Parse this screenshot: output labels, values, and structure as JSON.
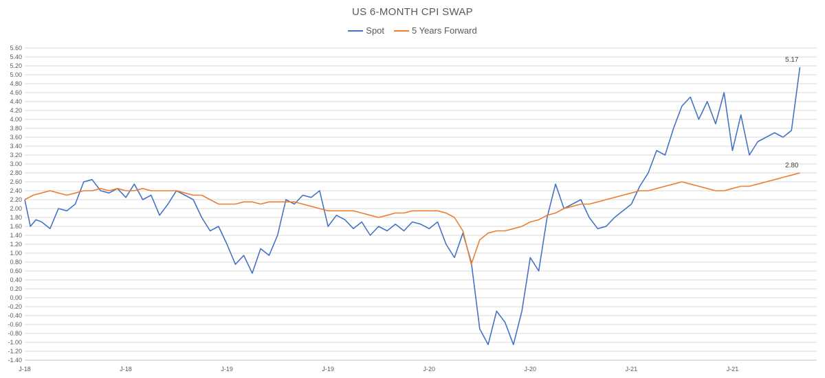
{
  "chart_data": {
    "type": "line",
    "title": "US 6-MONTH CPI SWAP",
    "xlabel": "",
    "ylabel": "",
    "ylim": [
      -1.4,
      5.6
    ],
    "y_ticks": [
      "5.60",
      "5.40",
      "5.20",
      "5.00",
      "4.80",
      "4.60",
      "4.40",
      "4.20",
      "4.00",
      "3.80",
      "3.60",
      "3.40",
      "3.20",
      "3.00",
      "2.80",
      "2.60",
      "2.40",
      "2.20",
      "2.00",
      "1.80",
      "1.60",
      "1.40",
      "1.20",
      "1.00",
      "0.80",
      "0.60",
      "0.40",
      "0.20",
      "0.00",
      "-0.20",
      "-0.40",
      "-0.60",
      "-0.80",
      "-1.00",
      "-1.20",
      "-1.40"
    ],
    "x_tick_labels": [
      "J-18",
      "J-18",
      "J-19",
      "J-19",
      "J-20",
      "J-20",
      "J-21",
      "J-21"
    ],
    "x_tick_dates": [
      "2018-01",
      "2018-07",
      "2019-01",
      "2019-07",
      "2020-01",
      "2020-07",
      "2021-01",
      "2021-07"
    ],
    "x_range": [
      "2018-01",
      "2021-12"
    ],
    "grid": true,
    "legend_position": "top-center",
    "series": [
      {
        "name": "Spot",
        "color": "#4472C4",
        "end_label": "5.17",
        "points": [
          [
            "2018-01",
            2.2
          ],
          [
            "2018-01",
            1.6
          ],
          [
            "2018-01",
            1.75
          ],
          [
            "2018-02",
            1.7
          ],
          [
            "2018-02",
            1.55
          ],
          [
            "2018-03",
            2.0
          ],
          [
            "2018-03",
            1.95
          ],
          [
            "2018-04",
            2.1
          ],
          [
            "2018-04",
            2.6
          ],
          [
            "2018-05",
            2.65
          ],
          [
            "2018-05",
            2.4
          ],
          [
            "2018-06",
            2.35
          ],
          [
            "2018-06",
            2.45
          ],
          [
            "2018-07",
            2.25
          ],
          [
            "2018-07",
            2.55
          ],
          [
            "2018-08",
            2.2
          ],
          [
            "2018-08",
            2.3
          ],
          [
            "2018-09",
            1.85
          ],
          [
            "2018-09",
            2.1
          ],
          [
            "2018-10",
            2.4
          ],
          [
            "2018-10",
            2.3
          ],
          [
            "2018-11",
            2.2
          ],
          [
            "2018-11",
            1.8
          ],
          [
            "2018-12",
            1.5
          ],
          [
            "2018-12",
            1.6
          ],
          [
            "2019-01",
            1.2
          ],
          [
            "2019-01",
            0.75
          ],
          [
            "2019-02",
            0.95
          ],
          [
            "2019-02",
            0.55
          ],
          [
            "2019-03",
            1.1
          ],
          [
            "2019-03",
            0.95
          ],
          [
            "2019-04",
            1.4
          ],
          [
            "2019-04",
            2.2
          ],
          [
            "2019-05",
            2.1
          ],
          [
            "2019-05",
            2.3
          ],
          [
            "2019-06",
            2.25
          ],
          [
            "2019-06",
            2.4
          ],
          [
            "2019-07",
            1.6
          ],
          [
            "2019-07",
            1.85
          ],
          [
            "2019-08",
            1.75
          ],
          [
            "2019-08",
            1.55
          ],
          [
            "2019-09",
            1.7
          ],
          [
            "2019-09",
            1.4
          ],
          [
            "2019-10",
            1.6
          ],
          [
            "2019-10",
            1.5
          ],
          [
            "2019-11",
            1.65
          ],
          [
            "2019-11",
            1.5
          ],
          [
            "2019-12",
            1.7
          ],
          [
            "2019-12",
            1.65
          ],
          [
            "2020-01",
            1.55
          ],
          [
            "2020-01",
            1.7
          ],
          [
            "2020-02",
            1.2
          ],
          [
            "2020-02",
            0.9
          ],
          [
            "2020-03",
            1.45
          ],
          [
            "2020-03",
            0.8
          ],
          [
            "2020-04",
            -0.7
          ],
          [
            "2020-04",
            -1.05
          ],
          [
            "2020-05",
            -0.3
          ],
          [
            "2020-05",
            -0.55
          ],
          [
            "2020-06",
            -1.05
          ],
          [
            "2020-06",
            -0.3
          ],
          [
            "2020-07",
            0.9
          ],
          [
            "2020-07",
            0.6
          ],
          [
            "2020-08",
            1.8
          ],
          [
            "2020-08",
            2.55
          ],
          [
            "2020-09",
            2.0
          ],
          [
            "2020-09",
            2.1
          ],
          [
            "2020-10",
            2.2
          ],
          [
            "2020-10",
            1.8
          ],
          [
            "2020-11",
            1.55
          ],
          [
            "2020-11",
            1.6
          ],
          [
            "2020-12",
            1.8
          ],
          [
            "2020-12",
            1.95
          ],
          [
            "2021-01",
            2.1
          ],
          [
            "2021-01",
            2.5
          ],
          [
            "2021-02",
            2.8
          ],
          [
            "2021-02",
            3.3
          ],
          [
            "2021-03",
            3.2
          ],
          [
            "2021-03",
            3.8
          ],
          [
            "2021-04",
            4.3
          ],
          [
            "2021-04",
            4.5
          ],
          [
            "2021-05",
            4.0
          ],
          [
            "2021-05",
            4.4
          ],
          [
            "2021-06",
            3.9
          ],
          [
            "2021-06",
            4.6
          ],
          [
            "2021-07",
            3.3
          ],
          [
            "2021-07",
            4.1
          ],
          [
            "2021-08",
            3.2
          ],
          [
            "2021-08",
            3.5
          ],
          [
            "2021-09",
            3.6
          ],
          [
            "2021-09",
            3.7
          ],
          [
            "2021-10",
            3.6
          ],
          [
            "2021-10",
            3.75
          ],
          [
            "2021-11",
            5.17
          ]
        ]
      },
      {
        "name": "5 Years Forward",
        "color": "#ED7D31",
        "end_label": "2.80",
        "points": [
          [
            "2018-01",
            2.2
          ],
          [
            "2018-01",
            2.3
          ],
          [
            "2018-02",
            2.35
          ],
          [
            "2018-02",
            2.4
          ],
          [
            "2018-03",
            2.35
          ],
          [
            "2018-03",
            2.3
          ],
          [
            "2018-04",
            2.35
          ],
          [
            "2018-04",
            2.4
          ],
          [
            "2018-05",
            2.4
          ],
          [
            "2018-05",
            2.45
          ],
          [
            "2018-06",
            2.4
          ],
          [
            "2018-06",
            2.45
          ],
          [
            "2018-07",
            2.4
          ],
          [
            "2018-07",
            2.4
          ],
          [
            "2018-08",
            2.45
          ],
          [
            "2018-08",
            2.4
          ],
          [
            "2018-09",
            2.4
          ],
          [
            "2018-09",
            2.4
          ],
          [
            "2018-10",
            2.4
          ],
          [
            "2018-10",
            2.35
          ],
          [
            "2018-11",
            2.3
          ],
          [
            "2018-11",
            2.3
          ],
          [
            "2018-12",
            2.2
          ],
          [
            "2018-12",
            2.1
          ],
          [
            "2019-01",
            2.1
          ],
          [
            "2019-01",
            2.1
          ],
          [
            "2019-02",
            2.15
          ],
          [
            "2019-02",
            2.15
          ],
          [
            "2019-03",
            2.1
          ],
          [
            "2019-03",
            2.15
          ],
          [
            "2019-04",
            2.15
          ],
          [
            "2019-04",
            2.15
          ],
          [
            "2019-05",
            2.15
          ],
          [
            "2019-05",
            2.1
          ],
          [
            "2019-06",
            2.05
          ],
          [
            "2019-06",
            2.0
          ],
          [
            "2019-07",
            1.95
          ],
          [
            "2019-07",
            1.95
          ],
          [
            "2019-08",
            1.95
          ],
          [
            "2019-08",
            1.95
          ],
          [
            "2019-09",
            1.9
          ],
          [
            "2019-09",
            1.85
          ],
          [
            "2019-10",
            1.8
          ],
          [
            "2019-10",
            1.85
          ],
          [
            "2019-11",
            1.9
          ],
          [
            "2019-11",
            1.9
          ],
          [
            "2019-12",
            1.95
          ],
          [
            "2019-12",
            1.95
          ],
          [
            "2020-01",
            1.95
          ],
          [
            "2020-01",
            1.95
          ],
          [
            "2020-02",
            1.9
          ],
          [
            "2020-02",
            1.8
          ],
          [
            "2020-03",
            1.5
          ],
          [
            "2020-03",
            0.75
          ],
          [
            "2020-04",
            1.3
          ],
          [
            "2020-04",
            1.45
          ],
          [
            "2020-05",
            1.5
          ],
          [
            "2020-05",
            1.5
          ],
          [
            "2020-06",
            1.55
          ],
          [
            "2020-06",
            1.6
          ],
          [
            "2020-07",
            1.7
          ],
          [
            "2020-07",
            1.75
          ],
          [
            "2020-08",
            1.85
          ],
          [
            "2020-08",
            1.9
          ],
          [
            "2020-09",
            2.0
          ],
          [
            "2020-09",
            2.05
          ],
          [
            "2020-10",
            2.1
          ],
          [
            "2020-10",
            2.1
          ],
          [
            "2020-11",
            2.15
          ],
          [
            "2020-11",
            2.2
          ],
          [
            "2020-12",
            2.25
          ],
          [
            "2020-12",
            2.3
          ],
          [
            "2021-01",
            2.35
          ],
          [
            "2021-01",
            2.4
          ],
          [
            "2021-02",
            2.4
          ],
          [
            "2021-02",
            2.45
          ],
          [
            "2021-03",
            2.5
          ],
          [
            "2021-03",
            2.55
          ],
          [
            "2021-04",
            2.6
          ],
          [
            "2021-04",
            2.55
          ],
          [
            "2021-05",
            2.5
          ],
          [
            "2021-05",
            2.45
          ],
          [
            "2021-06",
            2.4
          ],
          [
            "2021-06",
            2.4
          ],
          [
            "2021-07",
            2.45
          ],
          [
            "2021-07",
            2.5
          ],
          [
            "2021-08",
            2.5
          ],
          [
            "2021-08",
            2.55
          ],
          [
            "2021-09",
            2.6
          ],
          [
            "2021-09",
            2.65
          ],
          [
            "2021-10",
            2.7
          ],
          [
            "2021-10",
            2.75
          ],
          [
            "2021-11",
            2.8
          ]
        ]
      }
    ]
  }
}
